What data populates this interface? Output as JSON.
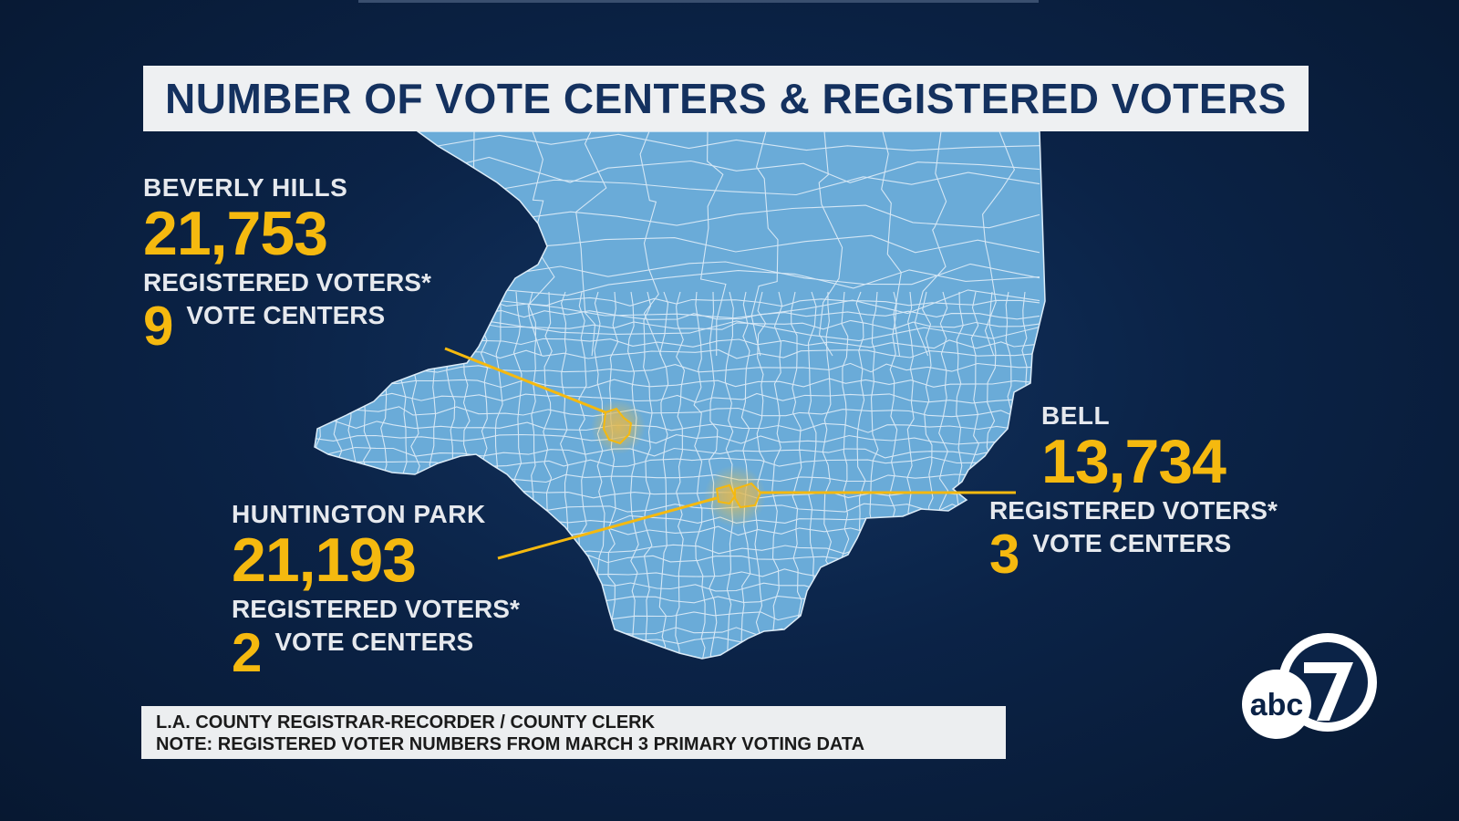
{
  "title": "NUMBER OF VOTE CENTERS & REGISTERED VOTERS",
  "colors": {
    "background": "#0b2347",
    "map_fill": "#6aabd8",
    "map_borders": "#dcecf8",
    "accent": "#f5b90f",
    "title_text": "#14315f"
  },
  "cities": [
    {
      "city": "BEVERLY HILLS",
      "registered_voters": "21,753",
      "registered_label": "REGISTERED VOTERS*",
      "vote_centers": "9",
      "centers_label": "VOTE CENTERS"
    },
    {
      "city": "HUNTINGTON PARK",
      "registered_voters": "21,193",
      "registered_label": "REGISTERED VOTERS*",
      "vote_centers": "2",
      "centers_label": "VOTE CENTERS"
    },
    {
      "city": "BELL",
      "registered_voters": "13,734",
      "registered_label": "REGISTERED VOTERS*",
      "vote_centers": "3",
      "centers_label": "VOTE CENTERS"
    }
  ],
  "source": {
    "line1": "L.A. COUNTY REGISTRAR-RECORDER / COUNTY CLERK",
    "line2": "NOTE: REGISTERED VOTER NUMBERS FROM MARCH 3 PRIMARY VOTING DATA"
  },
  "logo": {
    "brand_text": "abc",
    "channel": "7",
    "icon": "abc7-logo-icon"
  }
}
